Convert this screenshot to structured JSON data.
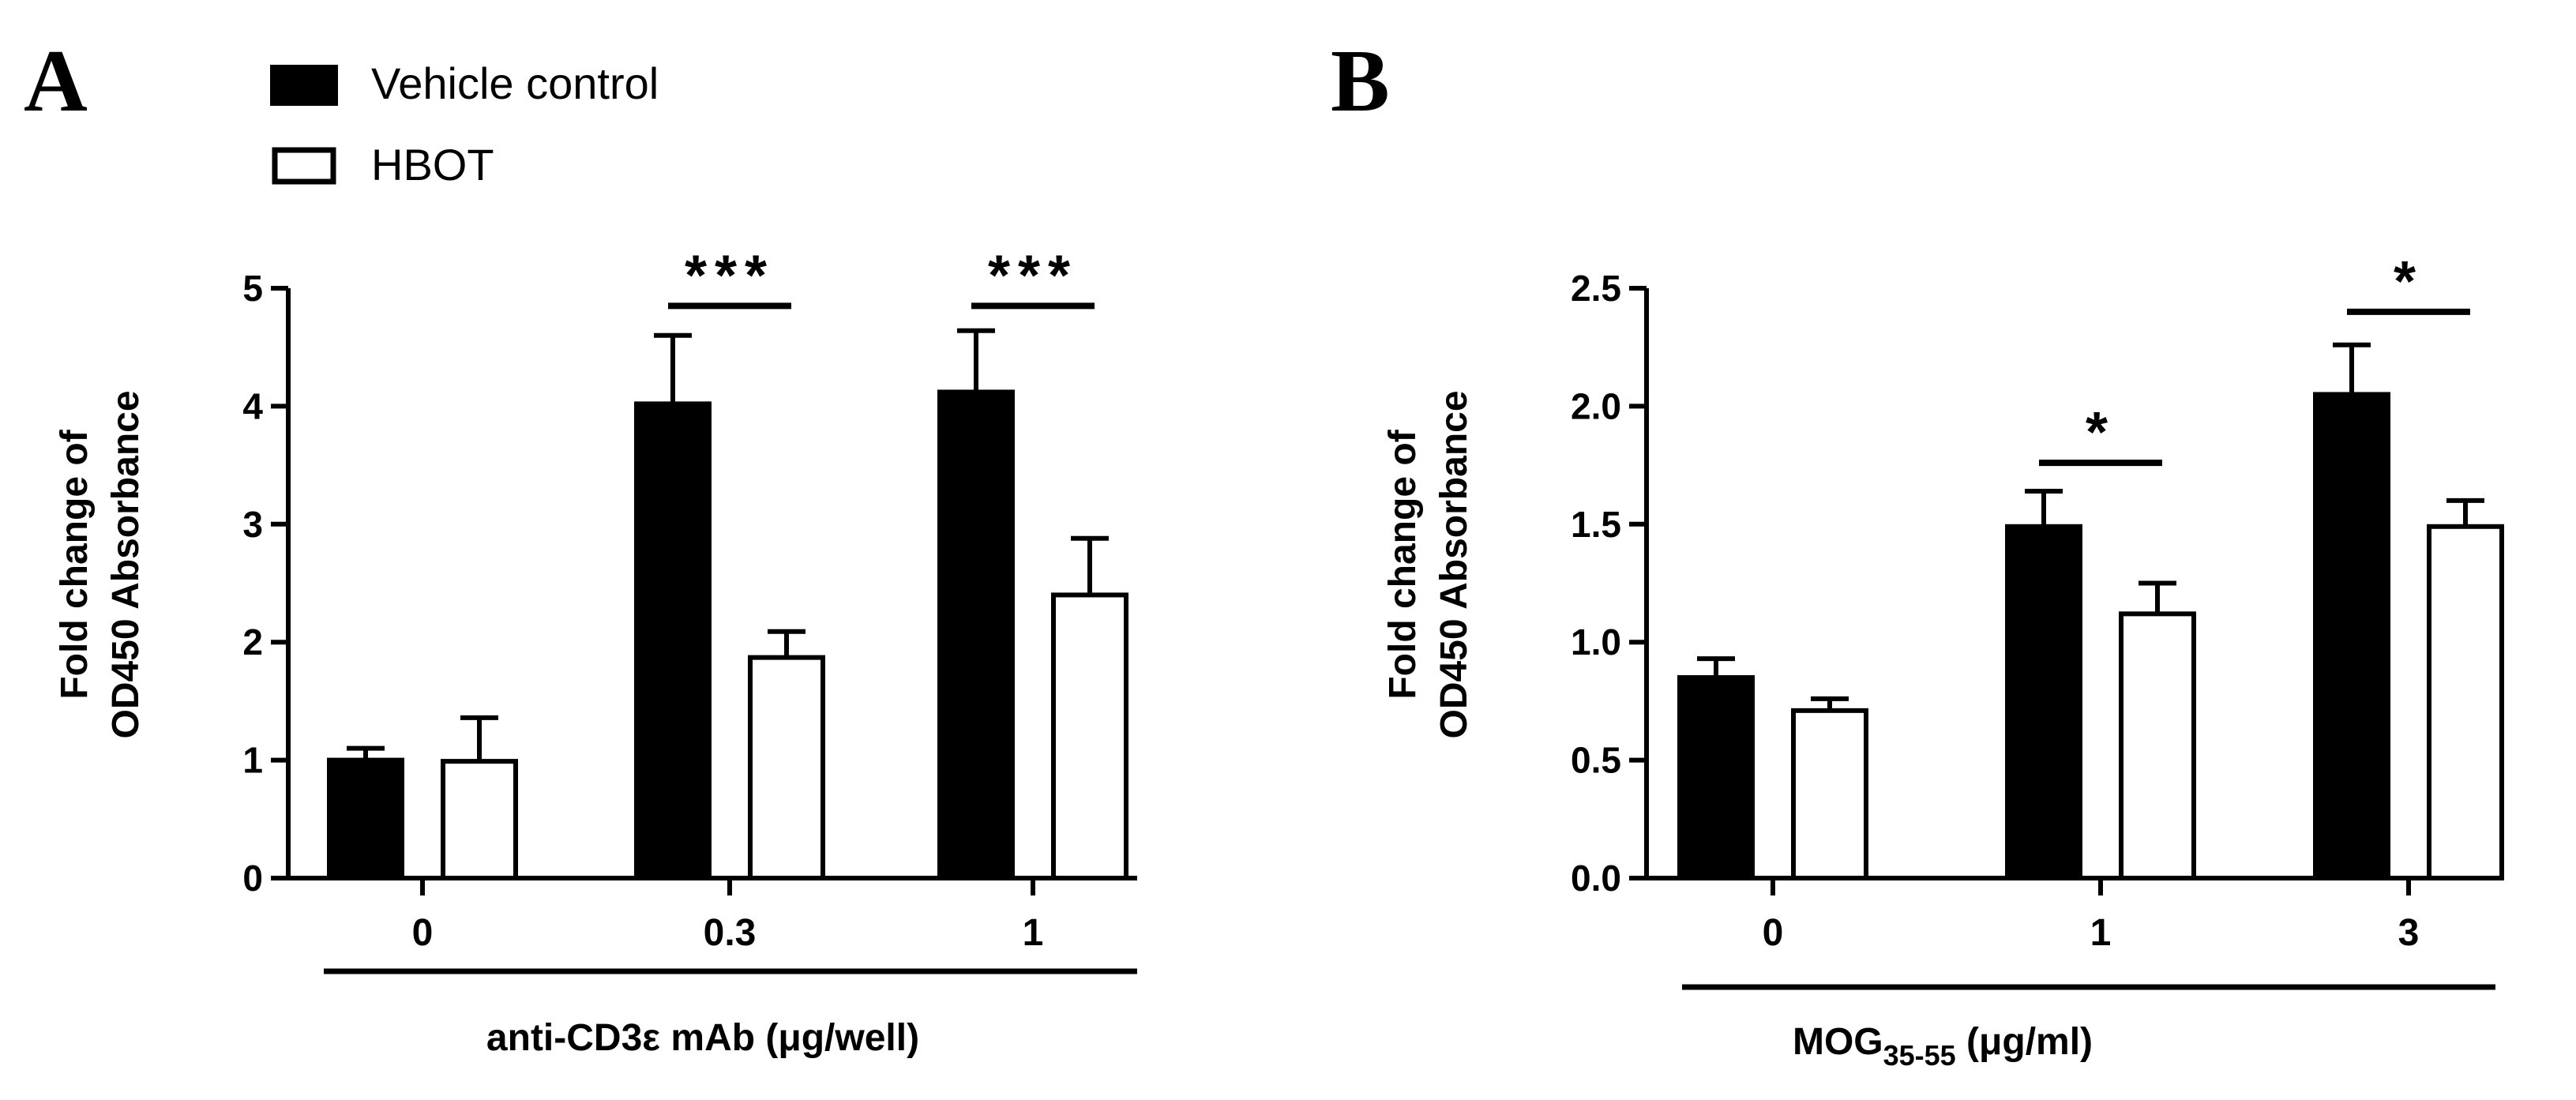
{
  "legend": {
    "entries": [
      {
        "label": "Vehicle control",
        "fill": "#000000"
      },
      {
        "label": "HBOT",
        "fill": "#ffffff"
      }
    ]
  },
  "chart_data": [
    {
      "panel": "A",
      "type": "bar",
      "title": "",
      "categories": [
        "0",
        "0.3",
        "1"
      ],
      "series": [
        {
          "name": "Vehicle control",
          "color": "#000000",
          "values": [
            1.0,
            4.02,
            4.12
          ],
          "errors": [
            0.1,
            0.58,
            0.52
          ]
        },
        {
          "name": "HBOT",
          "color": "#ffffff",
          "values": [
            0.99,
            1.87,
            2.4
          ],
          "errors": [
            0.37,
            0.22,
            0.48
          ]
        }
      ],
      "ylim": [
        0,
        5
      ],
      "yticks": [
        "0",
        "1",
        "2",
        "3",
        "4",
        "5"
      ],
      "ylabel_line1": "Fold change of",
      "ylabel_line2": "OD450 Absorbance",
      "xlabel": "anti-CD3ε mAb (μg/well)",
      "significance": [
        {
          "category_index": 1,
          "label": "***",
          "y": 4.85
        },
        {
          "category_index": 2,
          "label": "***",
          "y": 4.85
        }
      ]
    },
    {
      "panel": "B",
      "type": "bar",
      "title": "",
      "categories": [
        "0",
        "1",
        "3"
      ],
      "series": [
        {
          "name": "Vehicle control",
          "color": "#000000",
          "values": [
            0.85,
            1.49,
            2.05
          ],
          "errors": [
            0.08,
            0.15,
            0.21
          ]
        },
        {
          "name": "HBOT",
          "color": "#ffffff",
          "values": [
            0.71,
            1.12,
            1.49
          ],
          "errors": [
            0.05,
            0.13,
            0.11
          ]
        }
      ],
      "ylim": [
        0,
        2.5
      ],
      "yticks": [
        "0.0",
        "0.5",
        "1.0",
        "1.5",
        "2.0",
        "2.5"
      ],
      "ylabel_line1": "Fold change of",
      "ylabel_line2": "OD450 Absorbance",
      "xlabel_main": "MOG",
      "xlabel_sub": "35-55",
      "xlabel_rest": " (μg/ml)",
      "significance": [
        {
          "category_index": 1,
          "label": "*",
          "y": 1.76
        },
        {
          "category_index": 2,
          "label": "*",
          "y": 2.4
        }
      ]
    }
  ]
}
